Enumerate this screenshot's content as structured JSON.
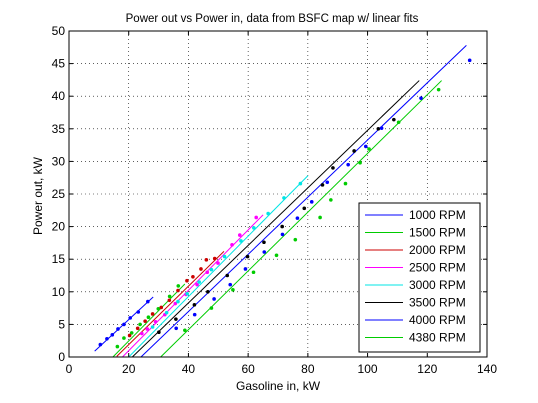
{
  "chart_data": {
    "type": "scatter",
    "title": "Power out vs Power in, data from BSFC map w/ linear fits",
    "xlabel": "Gasoline in, kW",
    "ylabel": "Power out, kW",
    "xlim": [
      0,
      140
    ],
    "ylim": [
      0,
      50
    ],
    "xticks": [
      0,
      20,
      40,
      60,
      80,
      100,
      120,
      140
    ],
    "yticks": [
      0,
      5,
      10,
      15,
      20,
      25,
      30,
      35,
      40,
      45,
      50
    ],
    "x_tick_labels": [
      "0",
      "20",
      "40",
      "60",
      "80",
      "100",
      "120",
      "140"
    ],
    "y_tick_labels": [
      "0",
      "5",
      "10",
      "15",
      "20",
      "25",
      "30",
      "35",
      "40",
      "45",
      "50"
    ],
    "grid": true,
    "grid_style": "dotted",
    "legend_position": "bottom-right",
    "series": [
      {
        "name": "1000 RPM",
        "color": "#0000ff",
        "points": [
          [
            10.5,
            1.9
          ],
          [
            12.7,
            2.8
          ],
          [
            14.5,
            3.4
          ],
          [
            16.4,
            4.3
          ],
          [
            18.4,
            5.0
          ],
          [
            20.5,
            6.0
          ],
          [
            23.2,
            6.9
          ],
          [
            26.4,
            8.5
          ]
        ],
        "fit": [
          [
            8.6,
            0.9
          ],
          [
            28.2,
            9.2
          ]
        ]
      },
      {
        "name": "1500 RPM",
        "color": "#00cc00",
        "points": [
          [
            16.2,
            1.6
          ],
          [
            18.4,
            2.9
          ],
          [
            21.0,
            3.7
          ],
          [
            23.8,
            5.0
          ],
          [
            26.6,
            6.1
          ],
          [
            29.9,
            7.4
          ],
          [
            33.7,
            9.3
          ],
          [
            36.6,
            10.9
          ]
        ],
        "fit": [
          [
            14.7,
            0.0
          ],
          [
            38.8,
            11.2
          ]
        ]
      },
      {
        "name": "2000 RPM",
        "color": "#cc0000",
        "points": [
          [
            20.3,
            3.3
          ],
          [
            23.0,
            4.4
          ],
          [
            25.5,
            5.5
          ],
          [
            28.0,
            6.6
          ],
          [
            30.9,
            7.6
          ],
          [
            33.6,
            8.7
          ],
          [
            36.5,
            10.2
          ],
          [
            39.5,
            11.7
          ],
          [
            41.5,
            12.3
          ],
          [
            44.2,
            13.5
          ],
          [
            46.0,
            14.9
          ],
          [
            48.8,
            15.1
          ]
        ],
        "fit": [
          [
            16.0,
            0.1
          ],
          [
            51.9,
            16.2
          ]
        ]
      },
      {
        "name": "2500 RPM",
        "color": "#ff00ff",
        "points": [
          [
            24.4,
            3.6
          ],
          [
            26.2,
            4.3
          ],
          [
            29.0,
            5.4
          ],
          [
            32.1,
            6.5
          ],
          [
            35.6,
            8.2
          ],
          [
            39.2,
            9.6
          ],
          [
            42.9,
            11.1
          ],
          [
            46.3,
            13.0
          ],
          [
            49.9,
            14.4
          ],
          [
            54.6,
            17.2
          ],
          [
            57.2,
            18.7
          ],
          [
            62.7,
            21.4
          ]
        ],
        "fit": [
          [
            17.9,
            0.0
          ],
          [
            65.0,
            21.8
          ]
        ]
      },
      {
        "name": "3000 RPM",
        "color": "#00e5e5",
        "points": [
          [
            28.0,
            4.6
          ],
          [
            32.7,
            6.8
          ],
          [
            36.5,
            8.5
          ],
          [
            39.6,
            9.7
          ],
          [
            43.6,
            11.5
          ],
          [
            47.7,
            13.4
          ],
          [
            52.1,
            15.4
          ],
          [
            57.6,
            17.8
          ],
          [
            61.9,
            19.8
          ],
          [
            66.7,
            22.0
          ],
          [
            72.0,
            24.4
          ],
          [
            77.5,
            26.6
          ]
        ],
        "fit": [
          [
            20.0,
            0.0
          ],
          [
            80.0,
            27.8
          ]
        ]
      },
      {
        "name": "3500 RPM",
        "color": "#000000",
        "points": [
          [
            30.1,
            3.8
          ],
          [
            35.8,
            5.8
          ],
          [
            42.0,
            8.0
          ],
          [
            46.5,
            10.0
          ],
          [
            53.0,
            12.5
          ],
          [
            59.8,
            15.4
          ],
          [
            65.3,
            17.6
          ],
          [
            71.4,
            20.0
          ],
          [
            78.8,
            22.8
          ],
          [
            84.9,
            26.4
          ],
          [
            88.4,
            29.0
          ],
          [
            95.5,
            31.6
          ],
          [
            103.6,
            35.0
          ],
          [
            108.8,
            36.4
          ]
        ],
        "fit": [
          [
            21.2,
            0.0
          ],
          [
            117.3,
            42.4
          ]
        ]
      },
      {
        "name": "4000 RPM",
        "color": "#0000ff",
        "points": [
          [
            35.9,
            4.4
          ],
          [
            42.1,
            6.5
          ],
          [
            48.6,
            8.9
          ],
          [
            54.0,
            11.1
          ],
          [
            59.1,
            13.5
          ],
          [
            65.4,
            16.1
          ],
          [
            71.5,
            18.8
          ],
          [
            76.5,
            21.3
          ],
          [
            81.3,
            23.8
          ],
          [
            86.5,
            26.8
          ],
          [
            93.5,
            29.5
          ],
          [
            99.4,
            32.3
          ],
          [
            104.7,
            35.1
          ],
          [
            117.9,
            39.7
          ],
          [
            134.2,
            45.5
          ]
        ],
        "fit": [
          [
            24.1,
            0.0
          ],
          [
            133.1,
            47.8
          ]
        ]
      },
      {
        "name": "4380 RPM",
        "color": "#00cc00",
        "points": [
          [
            38.8,
            4.1
          ],
          [
            47.7,
            7.5
          ],
          [
            54.9,
            10.3
          ],
          [
            61.8,
            13.0
          ],
          [
            69.5,
            15.6
          ],
          [
            75.8,
            18.0
          ],
          [
            84.1,
            21.4
          ],
          [
            87.7,
            24.1
          ],
          [
            92.6,
            26.6
          ],
          [
            97.5,
            29.8
          ],
          [
            100.5,
            31.9
          ],
          [
            110.4,
            36.0
          ],
          [
            123.8,
            41.0
          ]
        ],
        "fit": [
          [
            30.7,
            0.0
          ],
          [
            124.8,
            42.4
          ]
        ]
      }
    ]
  }
}
